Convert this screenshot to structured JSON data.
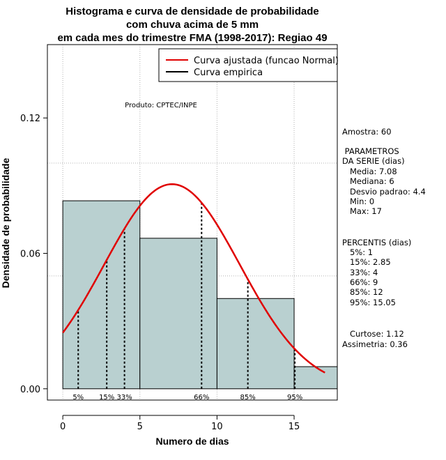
{
  "chart_data": {
    "type": "histogram",
    "title_lines": [
      "Histograma e curva de densidade de probabilidade",
      "com chuva acima de 5 mm",
      "em cada mes do trimestre FMA (1998-2017): Regiao 49"
    ],
    "xlabel": "Numero de dias",
    "ylabel": "Densidade de probabilidade",
    "xlim": [
      -1,
      17.8
    ],
    "ylim": [
      -0.005,
      0.1525
    ],
    "x_ticks": [
      0,
      5,
      10,
      15
    ],
    "y_ticks": [
      0.0,
      0.06,
      0.12
    ],
    "y_tick_labels": [
      "0.00",
      "0.06",
      "0.12"
    ],
    "grid": true,
    "grid_x": [
      0,
      5,
      10,
      15
    ],
    "grid_y": [
      0.05,
      0.1
    ],
    "bins": [
      {
        "x0": 0,
        "x1": 5,
        "density": 0.0833
      },
      {
        "x0": 5,
        "x1": 10,
        "density": 0.0667
      },
      {
        "x0": 10,
        "x1": 15,
        "density": 0.04
      },
      {
        "x0": 15,
        "x1": 17.8,
        "density": 0.0098
      }
    ],
    "bar_color": "#b9d0d0",
    "curve": {
      "mean": 7.08,
      "sd": 4.4,
      "x_from": 0,
      "x_to": 17,
      "color": "#e00000"
    },
    "percentiles": [
      {
        "label": "5%",
        "x": 1
      },
      {
        "label": "15%",
        "x": 2.85
      },
      {
        "label": "33%",
        "x": 4
      },
      {
        "label": "66%",
        "x": 9
      },
      {
        "label": "85%",
        "x": 12
      },
      {
        "label": "95%",
        "x": 15.05
      }
    ],
    "legend": {
      "placement": "top-right",
      "entries": [
        {
          "label": "Curva ajustada (funcao Normal)",
          "color": "#e00000"
        },
        {
          "label": "Curva empirica",
          "color": "#000000"
        }
      ]
    },
    "product_label": "Produto: CPTEC/INPE",
    "side_panel": [
      "Amostra: 60",
      " PARAMETROS",
      "DA SERIE (dias)",
      "   Media: 7.08",
      "   Mediana: 6",
      "   Desvio padrao: 4.4",
      "   Min: 0",
      "   Max: 17",
      "PERCENTIS (dias)",
      "   5%: 1",
      "   15%: 2.85",
      "   33%: 4",
      "   66%: 9",
      "   85%: 12",
      "   95%: 15.05",
      "   Curtose: 1.12",
      "Assimetria: 0.36"
    ]
  }
}
